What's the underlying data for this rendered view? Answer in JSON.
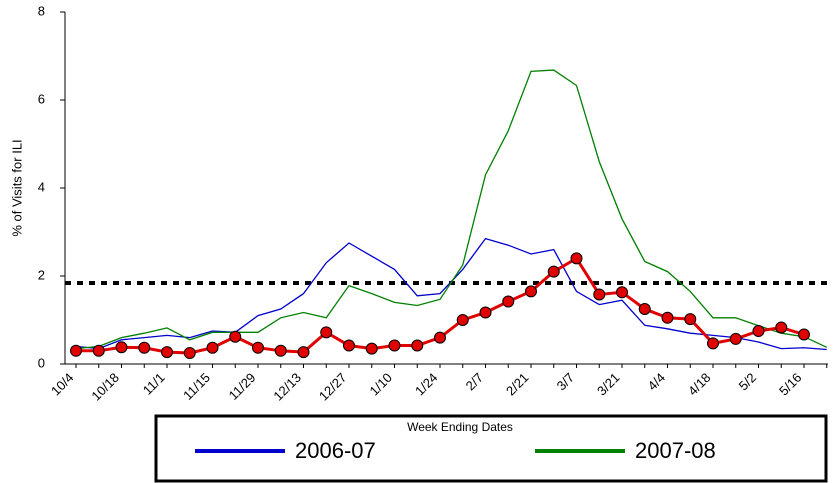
{
  "chart_data": {
    "type": "line",
    "y_label": "% of Visits for ILI",
    "x_label": "Week Ending Dates",
    "categories": [
      "10/4",
      null,
      "10/18",
      null,
      "11/1",
      null,
      "11/15",
      null,
      "11/29",
      null,
      "12/13",
      null,
      "12/27",
      null,
      "1/10",
      null,
      "1/24",
      null,
      "2/7",
      null,
      "2/21",
      null,
      "3/7",
      null,
      "3/21",
      null,
      "4/4",
      null,
      "4/18",
      null,
      "5/2",
      null,
      "5/16",
      null
    ],
    "ylim": [
      0,
      8
    ],
    "yticks": [
      0,
      2,
      4,
      6,
      8
    ],
    "threshold": 1.84,
    "series": [
      {
        "name": "2006-07",
        "color": "#0000cc",
        "values": [
          0.4,
          0.35,
          0.55,
          0.6,
          0.65,
          0.6,
          0.75,
          0.72,
          1.1,
          1.25,
          1.6,
          2.3,
          2.75,
          2.45,
          2.15,
          1.55,
          1.6,
          2.15,
          2.85,
          2.7,
          2.5,
          2.6,
          1.65,
          1.35,
          1.45,
          0.88,
          0.8,
          0.7,
          0.65,
          0.6,
          0.5,
          0.35,
          0.37,
          0.33
        ]
      },
      {
        "name": "2007-08",
        "color": "#008000",
        "values": [
          0.35,
          0.4,
          0.6,
          0.7,
          0.82,
          0.55,
          0.72,
          0.72,
          0.72,
          1.05,
          1.17,
          1.05,
          1.78,
          1.6,
          1.4,
          1.33,
          1.47,
          2.25,
          4.3,
          5.3,
          6.65,
          6.68,
          6.33,
          4.6,
          3.3,
          2.33,
          2.1,
          1.65,
          1.05,
          1.05,
          0.87,
          0.7,
          0.62,
          0.38
        ]
      },
      {
        "color": "#e00000",
        "values": [
          0.3,
          0.3,
          0.38,
          0.37,
          0.27,
          0.25,
          0.37,
          0.62,
          0.37,
          0.3,
          0.27,
          0.72,
          0.42,
          0.35,
          0.42,
          0.42,
          0.6,
          1.0,
          1.17,
          1.42,
          1.65,
          2.1,
          2.4,
          1.58,
          1.63,
          1.25,
          1.05,
          1.02,
          0.47,
          0.57,
          0.75,
          0.83,
          0.67,
          null
        ]
      }
    ]
  }
}
